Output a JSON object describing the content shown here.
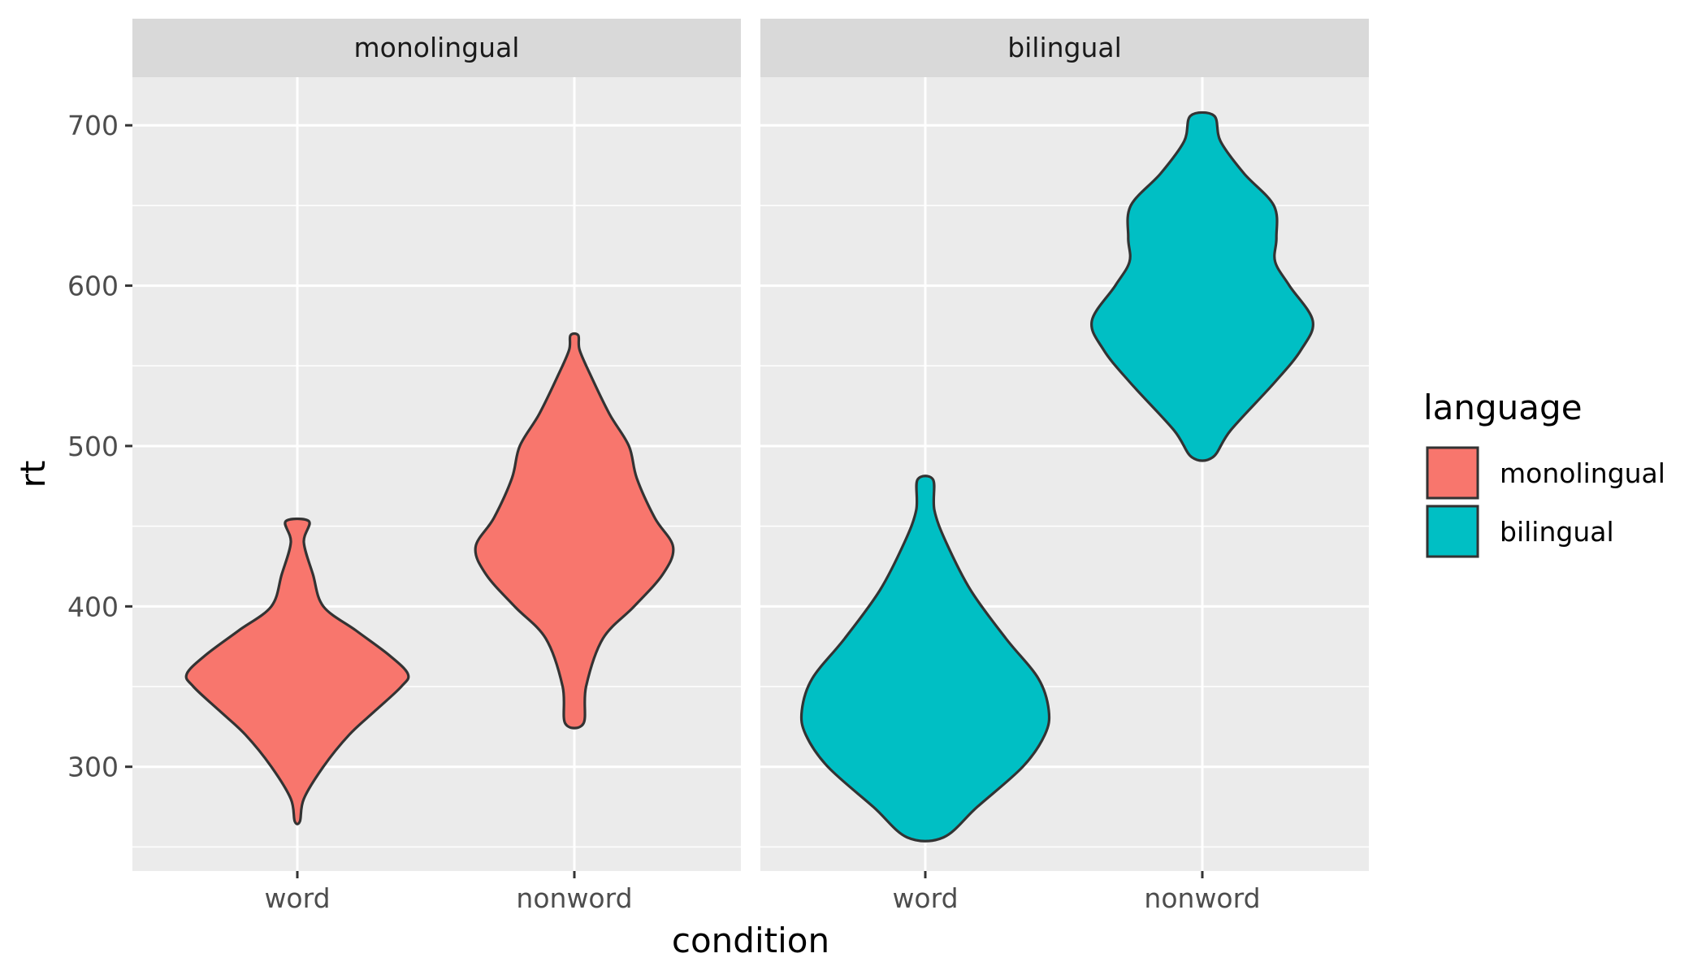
{
  "chart_data": {
    "type": "violin",
    "xlabel": "condition",
    "ylabel": "rt",
    "ylim": [
      235,
      730
    ],
    "y_ticks": [
      300,
      400,
      500,
      600,
      700
    ],
    "y_minor_ticks": [
      250,
      350,
      450,
      550,
      650
    ],
    "categories": [
      "word",
      "nonword"
    ],
    "facets": [
      {
        "label": "monolingual",
        "series": "monolingual"
      },
      {
        "label": "bilingual",
        "series": "bilingual"
      }
    ],
    "legend": {
      "title": "language",
      "placement": "right",
      "items": [
        {
          "label": "monolingual",
          "color": "#F8766D"
        },
        {
          "label": "bilingual",
          "color": "#00BFC4"
        }
      ]
    },
    "series": [
      {
        "name": "monolingual",
        "color": "#F8766D",
        "violins": [
          {
            "category": "word",
            "profile": [
              [
                266,
                0.02
              ],
              [
                280,
                0.05
              ],
              [
                300,
                0.2
              ],
              [
                320,
                0.4
              ],
              [
                335,
                0.6
              ],
              [
                350,
                0.8
              ],
              [
                358,
                0.85
              ],
              [
                370,
                0.7
              ],
              [
                385,
                0.45
              ],
              [
                400,
                0.2
              ],
              [
                420,
                0.12
              ],
              [
                440,
                0.05
              ],
              [
                453,
                0.09
              ]
            ]
          },
          {
            "category": "nonword",
            "profile": [
              [
                327,
                0.07
              ],
              [
                350,
                0.09
              ],
              [
                380,
                0.22
              ],
              [
                400,
                0.46
              ],
              [
                420,
                0.68
              ],
              [
                437,
                0.76
              ],
              [
                455,
                0.62
              ],
              [
                480,
                0.48
              ],
              [
                500,
                0.42
              ],
              [
                520,
                0.27
              ],
              [
                545,
                0.12
              ],
              [
                560,
                0.04
              ],
              [
                569,
                0.03
              ]
            ]
          }
        ]
      },
      {
        "name": "bilingual",
        "color": "#00BFC4",
        "violins": [
          {
            "category": "word",
            "profile": [
              [
                256,
                0.14
              ],
              [
                275,
                0.4
              ],
              [
                300,
                0.75
              ],
              [
                320,
                0.92
              ],
              [
                335,
                0.95
              ],
              [
                355,
                0.87
              ],
              [
                380,
                0.62
              ],
              [
                410,
                0.35
              ],
              [
                440,
                0.16
              ],
              [
                460,
                0.07
              ],
              [
                479,
                0.06
              ]
            ]
          },
          {
            "category": "nonword",
            "profile": [
              [
                493,
                0.08
              ],
              [
                510,
                0.22
              ],
              [
                540,
                0.56
              ],
              [
                560,
                0.76
              ],
              [
                578,
                0.85
              ],
              [
                600,
                0.67
              ],
              [
                615,
                0.56
              ],
              [
                630,
                0.57
              ],
              [
                650,
                0.55
              ],
              [
                670,
                0.32
              ],
              [
                690,
                0.14
              ],
              [
                706,
                0.09
              ]
            ]
          }
        ]
      }
    ]
  }
}
